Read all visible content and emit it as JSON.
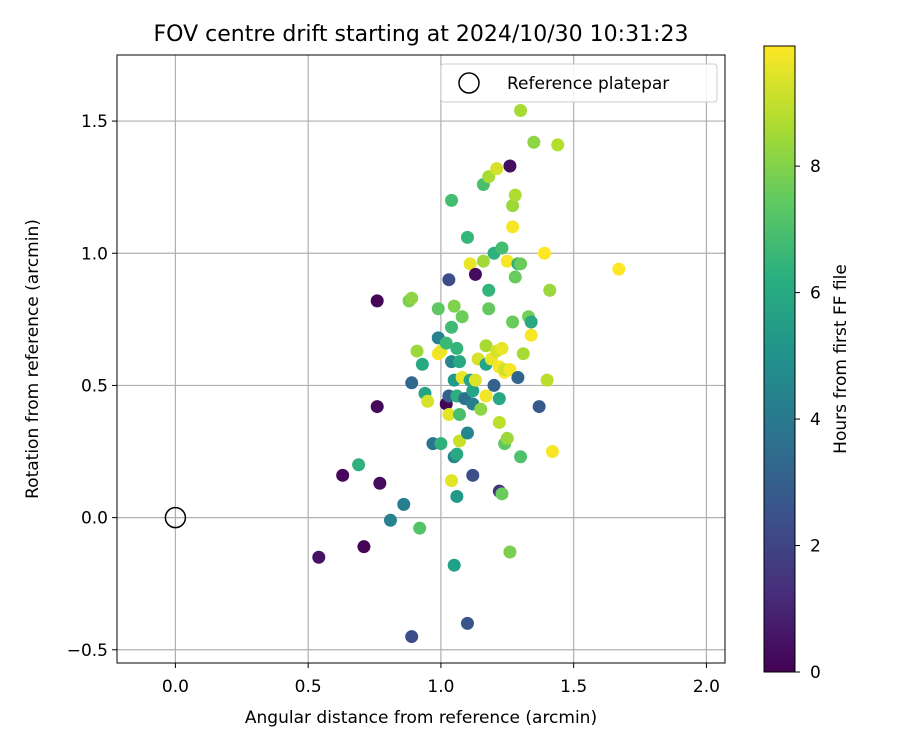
{
  "chart_data": {
    "type": "scatter",
    "title": "FOV centre drift starting at 2024/10/30 10:31:23",
    "xlabel": "Angular distance from reference (arcmin)",
    "ylabel": "Rotation from reference (arcmin)",
    "xlim": [
      -0.22,
      2.07
    ],
    "ylim": [
      -0.55,
      1.75
    ],
    "xticks": [
      "0.0",
      "0.5",
      "1.0",
      "1.5",
      "2.0"
    ],
    "xtick_values": [
      0.0,
      0.5,
      1.0,
      1.5,
      2.0
    ],
    "yticks": [
      "−0.5",
      "0.0",
      "0.5",
      "1.0",
      "1.5"
    ],
    "ytick_values": [
      -0.5,
      0.0,
      0.5,
      1.0,
      1.5
    ],
    "grid": true,
    "legend": {
      "position": "top-right",
      "label": "Reference platepar"
    },
    "reference": {
      "x": 0.0,
      "y": 0.0,
      "marker": "hollow-circle"
    },
    "colorbar": {
      "label": "Hours from first FF file",
      "colormap": "viridis",
      "range": [
        0,
        9.9
      ],
      "ticks": [
        "0",
        "2",
        "4",
        "6",
        "8"
      ],
      "tick_values": [
        0,
        2,
        4,
        6,
        8
      ]
    },
    "points": [
      [
        0.54,
        -0.15,
        0.5
      ],
      [
        0.63,
        0.16,
        0.2
      ],
      [
        0.71,
        -0.11,
        0.1
      ],
      [
        0.76,
        0.82,
        0.1
      ],
      [
        0.76,
        0.42,
        0.2
      ],
      [
        0.77,
        0.13,
        0.3
      ],
      [
        0.69,
        0.2,
        6.3
      ],
      [
        0.81,
        -0.01,
        4.4
      ],
      [
        0.86,
        0.05,
        4.2
      ],
      [
        0.89,
        -0.45,
        2.3
      ],
      [
        0.89,
        0.51,
        3.3
      ],
      [
        0.88,
        0.82,
        7.9
      ],
      [
        0.89,
        0.83,
        8.2
      ],
      [
        0.91,
        0.63,
        8.4
      ],
      [
        0.92,
        -0.04,
        7.2
      ],
      [
        0.93,
        0.58,
        6.0
      ],
      [
        0.94,
        0.47,
        5.8
      ],
      [
        0.95,
        0.44,
        9.3
      ],
      [
        0.97,
        0.28,
        3.8
      ],
      [
        0.99,
        0.79,
        7.4
      ],
      [
        0.99,
        0.68,
        4.4
      ],
      [
        0.99,
        0.62,
        9.8
      ],
      [
        1.0,
        0.63,
        9.6
      ],
      [
        1.0,
        0.28,
        6.3
      ],
      [
        1.02,
        0.43,
        0.1
      ],
      [
        1.02,
        0.66,
        6.7
      ],
      [
        1.03,
        0.46,
        3.0
      ],
      [
        1.03,
        0.9,
        2.3
      ],
      [
        1.03,
        0.39,
        9.5
      ],
      [
        1.04,
        0.14,
        9.5
      ],
      [
        1.04,
        0.72,
        6.8
      ],
      [
        1.04,
        1.2,
        6.9
      ],
      [
        1.04,
        0.59,
        4.6
      ],
      [
        1.05,
        0.52,
        5.4
      ],
      [
        1.05,
        0.8,
        8.0
      ],
      [
        1.05,
        0.23,
        4.6
      ],
      [
        1.05,
        -0.18,
        5.6
      ],
      [
        1.06,
        0.46,
        6.2
      ],
      [
        1.06,
        0.24,
        6.0
      ],
      [
        1.06,
        0.08,
        5.3
      ],
      [
        1.06,
        0.64,
        6.5
      ],
      [
        1.07,
        0.59,
        6.0
      ],
      [
        1.07,
        0.39,
        7.0
      ],
      [
        1.07,
        0.29,
        9.1
      ],
      [
        1.08,
        0.76,
        7.7
      ],
      [
        1.08,
        0.53,
        9.6
      ],
      [
        1.09,
        0.45,
        3.7
      ],
      [
        1.1,
        -0.4,
        2.6
      ],
      [
        1.1,
        0.32,
        4.6
      ],
      [
        1.1,
        1.06,
        6.6
      ],
      [
        1.11,
        0.52,
        5.8
      ],
      [
        1.11,
        0.96,
        9.6
      ],
      [
        1.12,
        0.43,
        4.2
      ],
      [
        1.12,
        0.16,
        2.4
      ],
      [
        1.12,
        0.48,
        5.8
      ],
      [
        1.13,
        0.52,
        9.4
      ],
      [
        1.13,
        0.92,
        0.3
      ],
      [
        1.14,
        0.6,
        9.3
      ],
      [
        1.15,
        0.41,
        8.2
      ],
      [
        1.16,
        0.97,
        8.5
      ],
      [
        1.16,
        1.26,
        7.0
      ],
      [
        1.17,
        0.58,
        5.8
      ],
      [
        1.17,
        0.65,
        8.6
      ],
      [
        1.17,
        0.46,
        9.7
      ],
      [
        1.18,
        0.79,
        7.5
      ],
      [
        1.18,
        0.86,
        6.5
      ],
      [
        1.18,
        1.29,
        8.6
      ],
      [
        1.19,
        0.6,
        9.6
      ],
      [
        1.2,
        1.0,
        6.3
      ],
      [
        1.2,
        0.5,
        3.1
      ],
      [
        1.21,
        1.32,
        9.3
      ],
      [
        1.21,
        0.63,
        9.3
      ],
      [
        1.22,
        0.1,
        1.5
      ],
      [
        1.22,
        0.45,
        5.9
      ],
      [
        1.22,
        0.36,
        8.9
      ],
      [
        1.22,
        0.57,
        9.8
      ],
      [
        1.23,
        0.64,
        9.6
      ],
      [
        1.23,
        0.09,
        7.6
      ],
      [
        1.23,
        1.02,
        6.9
      ],
      [
        1.24,
        0.28,
        7.4
      ],
      [
        1.24,
        0.55,
        9.9
      ],
      [
        1.24,
        0.56,
        9.2
      ],
      [
        1.25,
        0.97,
        9.8
      ],
      [
        1.25,
        0.3,
        8.4
      ],
      [
        1.26,
        -0.13,
        7.9
      ],
      [
        1.26,
        1.33,
        0.4
      ],
      [
        1.26,
        0.56,
        9.8
      ],
      [
        1.27,
        1.18,
        8.4
      ],
      [
        1.27,
        1.1,
        9.8
      ],
      [
        1.27,
        0.74,
        7.6
      ],
      [
        1.28,
        0.91,
        7.6
      ],
      [
        1.28,
        1.22,
        8.7
      ],
      [
        1.29,
        0.96,
        6.4
      ],
      [
        1.29,
        0.53,
        3.2
      ],
      [
        1.3,
        0.96,
        7.6
      ],
      [
        1.3,
        1.54,
        8.6
      ],
      [
        1.3,
        0.23,
        7.1
      ],
      [
        1.31,
        0.62,
        8.6
      ],
      [
        1.33,
        0.76,
        7.8
      ],
      [
        1.34,
        0.69,
        9.8
      ],
      [
        1.34,
        0.74,
        6.0
      ],
      [
        1.35,
        1.42,
        8.2
      ],
      [
        1.37,
        0.42,
        2.8
      ],
      [
        1.39,
        1.0,
        9.9
      ],
      [
        1.4,
        0.52,
        8.9
      ],
      [
        1.41,
        0.86,
        8.4
      ],
      [
        1.42,
        0.25,
        9.8
      ],
      [
        1.44,
        1.41,
        8.8
      ],
      [
        1.67,
        0.94,
        9.9
      ]
    ]
  }
}
